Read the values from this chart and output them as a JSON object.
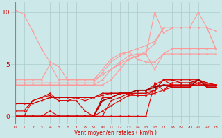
{
  "xlabel": "Vent moyen/en rafales ( km/h )",
  "background_color": "#cce8e8",
  "grid_color": "#aacccc",
  "x_values": [
    0,
    1,
    2,
    3,
    4,
    5,
    6,
    7,
    8,
    9,
    10,
    11,
    12,
    13,
    14,
    15,
    16,
    17,
    18,
    19,
    20,
    21,
    22,
    23
  ],
  "lines": [
    {
      "y": [
        10.2,
        9.8,
        8.2,
        6.5,
        5.2,
        4.8,
        3.5,
        3.5,
        3.5,
        3.5,
        4.0,
        4.5,
        5.0,
        5.5,
        5.8,
        6.2,
        7.0,
        8.5,
        8.5,
        8.5,
        8.5,
        8.5,
        8.5,
        6.5
      ],
      "color": "#ff9999",
      "lw": 0.8,
      "marker": "o",
      "ms": 1.5
    },
    {
      "y": [
        3.2,
        3.2,
        3.2,
        3.2,
        3.2,
        3.2,
        3.2,
        3.2,
        3.2,
        3.2,
        4.2,
        5.2,
        5.8,
        6.2,
        6.5,
        6.8,
        7.2,
        8.5,
        8.5,
        8.5,
        8.5,
        8.5,
        8.5,
        8.2
      ],
      "color": "#ff9999",
      "lw": 0.8,
      "marker": "o",
      "ms": 1.5
    },
    {
      "y": [
        3.5,
        3.5,
        3.5,
        3.5,
        5.0,
        3.5,
        3.5,
        3.5,
        3.5,
        3.5,
        4.5,
        5.5,
        6.0,
        6.2,
        5.5,
        5.2,
        5.2,
        6.0,
        6.5,
        6.5,
        6.5,
        6.5,
        6.5,
        6.5
      ],
      "color": "#ff9999",
      "lw": 0.8,
      "marker": "o",
      "ms": 1.5
    },
    {
      "y": [
        3.0,
        3.0,
        3.0,
        3.0,
        3.0,
        3.0,
        3.0,
        3.0,
        3.0,
        3.0,
        3.5,
        4.5,
        5.2,
        5.8,
        6.0,
        6.0,
        4.5,
        6.0,
        6.0,
        6.0,
        6.0,
        6.0,
        6.0,
        6.0
      ],
      "color": "#ff9999",
      "lw": 0.8,
      "marker": "o",
      "ms": 1.5
    },
    {
      "y": [
        3.0,
        3.0,
        3.0,
        3.0,
        3.0,
        3.0,
        3.0,
        3.0,
        3.0,
        3.0,
        3.0,
        3.5,
        4.5,
        5.5,
        5.8,
        6.0,
        10.0,
        8.0,
        8.5,
        8.5,
        8.5,
        10.0,
        8.5,
        6.5
      ],
      "color": "#ff9999",
      "lw": 0.8,
      "marker": "o",
      "ms": 1.5
    },
    {
      "y": [
        0.0,
        0.0,
        0.0,
        0.0,
        0.5,
        0.0,
        0.0,
        0.0,
        0.0,
        0.0,
        0.5,
        1.0,
        1.5,
        2.0,
        2.0,
        2.0,
        2.5,
        3.0,
        3.0,
        3.0,
        3.0,
        3.5,
        3.0,
        3.0
      ],
      "color": "#dd0000",
      "lw": 0.8,
      "marker": "o",
      "ms": 1.5
    },
    {
      "y": [
        0.0,
        0.0,
        1.5,
        1.8,
        2.0,
        1.5,
        1.5,
        1.5,
        0.5,
        0.0,
        0.0,
        1.5,
        1.8,
        2.2,
        2.5,
        2.5,
        2.8,
        3.0,
        3.0,
        3.0,
        3.0,
        3.0,
        3.0,
        3.0
      ],
      "color": "#dd0000",
      "lw": 0.8,
      "marker": "o",
      "ms": 1.5
    },
    {
      "y": [
        0.5,
        0.5,
        1.5,
        1.8,
        2.2,
        1.5,
        1.5,
        1.8,
        1.5,
        1.8,
        2.0,
        2.2,
        2.2,
        2.2,
        2.5,
        2.5,
        3.0,
        3.5,
        3.0,
        3.0,
        3.0,
        3.0,
        3.0,
        3.0
      ],
      "color": "#dd0000",
      "lw": 0.8,
      "marker": "o",
      "ms": 1.5
    },
    {
      "y": [
        1.2,
        1.2,
        1.2,
        1.5,
        1.8,
        1.8,
        1.8,
        1.8,
        1.8,
        1.8,
        2.2,
        2.2,
        2.2,
        2.2,
        2.2,
        2.2,
        2.5,
        3.5,
        3.5,
        3.2,
        3.2,
        3.5,
        3.2,
        3.0
      ],
      "color": "#cc0000",
      "lw": 1.0,
      "marker": "o",
      "ms": 1.5
    },
    {
      "y": [
        0.0,
        0.0,
        0.0,
        0.0,
        0.0,
        0.0,
        0.0,
        0.0,
        0.0,
        0.0,
        1.8,
        1.8,
        2.2,
        2.2,
        2.5,
        2.5,
        2.5,
        3.5,
        3.5,
        3.5,
        3.5,
        3.5,
        3.0,
        3.0
      ],
      "color": "#dd0000",
      "lw": 0.8,
      "marker": "o",
      "ms": 1.5
    },
    {
      "y": [
        0.0,
        0.0,
        0.0,
        0.0,
        0.0,
        0.0,
        0.0,
        0.0,
        0.0,
        0.0,
        1.5,
        1.8,
        2.2,
        2.2,
        2.5,
        2.5,
        2.8,
        3.0,
        2.8,
        2.8,
        2.8,
        3.5,
        2.8,
        2.8
      ],
      "color": "#990000",
      "lw": 1.2,
      "marker": "o",
      "ms": 1.5
    },
    {
      "y": [
        0.0,
        0.0,
        0.0,
        0.0,
        0.0,
        0.0,
        0.0,
        0.0,
        0.0,
        0.0,
        0.0,
        0.0,
        0.0,
        0.0,
        0.0,
        0.0,
        3.2,
        2.5,
        3.2,
        3.2,
        3.2,
        3.2,
        3.2,
        3.0
      ],
      "color": "#dd0000",
      "lw": 0.8,
      "marker": "o",
      "ms": 1.5
    },
    {
      "y": [
        0.0,
        0.0,
        0.0,
        0.0,
        0.0,
        0.0,
        0.0,
        0.0,
        0.0,
        0.0,
        1.8,
        1.8,
        2.2,
        2.2,
        2.0,
        2.0,
        2.2,
        2.5,
        2.8,
        2.8,
        2.8,
        3.2,
        2.8,
        2.8
      ],
      "color": "#dd0000",
      "lw": 0.8,
      "marker": "o",
      "ms": 1.5
    }
  ],
  "wind_arrows": [
    0,
    1,
    2,
    3,
    4,
    5,
    6,
    7,
    8,
    9,
    10,
    11,
    12,
    13,
    14,
    15,
    16,
    17,
    18,
    19,
    20,
    21,
    22,
    23
  ],
  "yticks": [
    0,
    5,
    10
  ],
  "ylim": [
    -0.8,
    11.0
  ],
  "xlim": [
    -0.5,
    23.5
  ]
}
